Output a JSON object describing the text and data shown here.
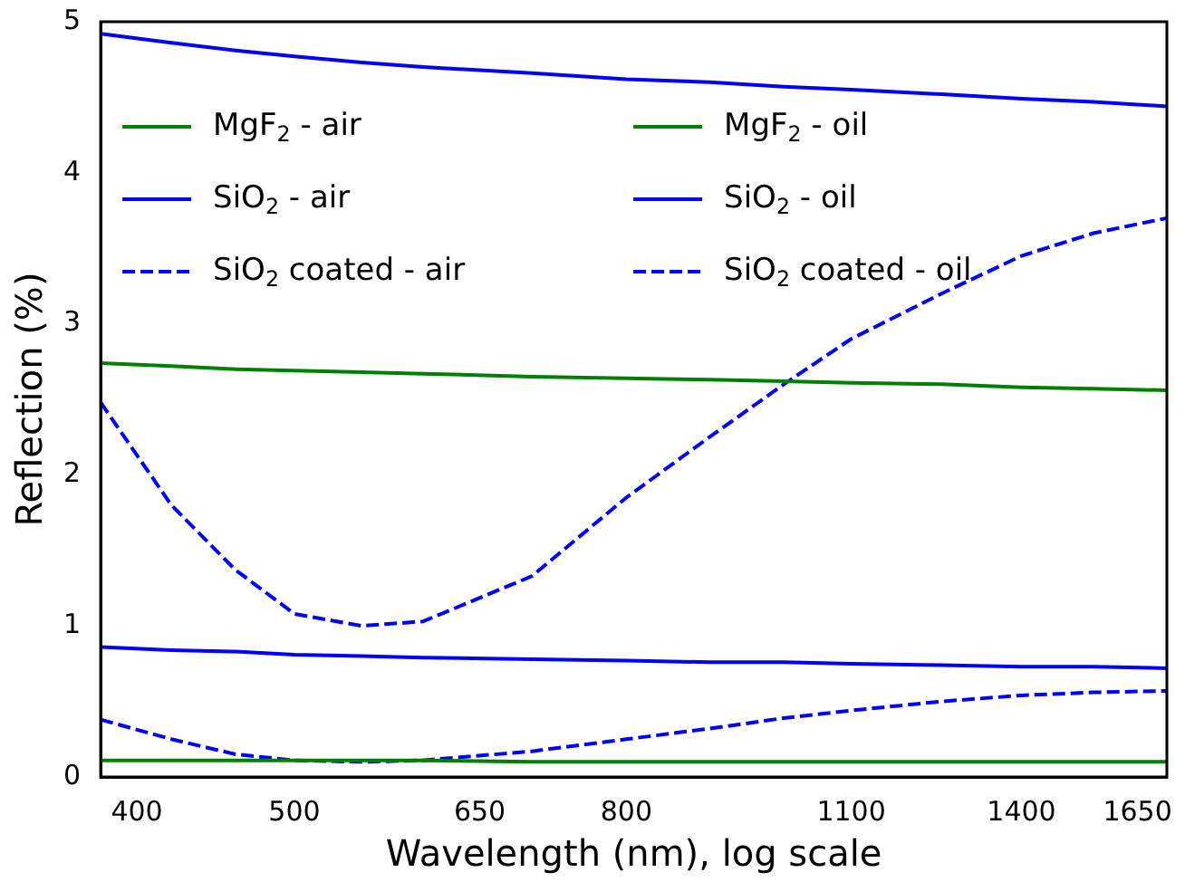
{
  "chart_data": {
    "type": "line",
    "xlabel": "Wavelength (nm), log scale",
    "ylabel": "Reflection (%)",
    "log": "x",
    "grid": false,
    "legend": "top",
    "xlim": [
      380,
      1720
    ],
    "xticks": [
      400,
      500,
      650,
      800,
      1100,
      1400,
      1650
    ],
    "ylim": [
      0,
      5
    ],
    "yticks": [
      0,
      1,
      2,
      3,
      4,
      5
    ],
    "x": [
      380,
      420,
      460,
      500,
      550,
      600,
      700,
      800,
      900,
      1000,
      1100,
      1250,
      1400,
      1550,
      1720
    ],
    "series": [
      {
        "name": "MgF$_{2}$ - air",
        "color": "#008000",
        "line_style": "solid",
        "values": [
          2.74,
          2.72,
          2.7,
          2.69,
          2.68,
          2.67,
          2.65,
          2.64,
          2.63,
          2.62,
          2.61,
          2.6,
          2.58,
          2.57,
          2.56
        ]
      },
      {
        "name": "SiO$_{2}$ - air",
        "color": "#0000ff",
        "line_style": "solid",
        "values": [
          4.92,
          4.86,
          4.81,
          4.77,
          4.73,
          4.7,
          4.66,
          4.62,
          4.6,
          4.57,
          4.55,
          4.52,
          4.49,
          4.47,
          4.44
        ]
      },
      {
        "name": "SiO$_{2}$ coated - air",
        "color": "#0000ff",
        "line_style": "dashed",
        "values": [
          2.48,
          1.8,
          1.37,
          1.08,
          1.0,
          1.03,
          1.33,
          1.85,
          2.25,
          2.6,
          2.9,
          3.2,
          3.45,
          3.6,
          3.7
        ]
      },
      {
        "name": "MgF$_{2}$ - oil",
        "color": "#008000",
        "line_style": "solid",
        "values": [
          0.11,
          0.11,
          0.11,
          0.11,
          0.11,
          0.11,
          0.1,
          0.1,
          0.1,
          0.1,
          0.1,
          0.1,
          0.1,
          0.1,
          0.1
        ]
      },
      {
        "name": "SiO$_{2}$ - oil",
        "color": "#0000ff",
        "line_style": "solid",
        "values": [
          0.86,
          0.84,
          0.83,
          0.81,
          0.8,
          0.79,
          0.78,
          0.77,
          0.76,
          0.76,
          0.75,
          0.74,
          0.73,
          0.73,
          0.72
        ]
      },
      {
        "name": "SiO$_{2}$ coated - oil",
        "color": "#0000ff",
        "line_style": "dashed",
        "values": [
          0.38,
          0.25,
          0.15,
          0.11,
          0.1,
          0.11,
          0.17,
          0.25,
          0.32,
          0.39,
          0.44,
          0.5,
          0.54,
          0.56,
          0.57
        ]
      }
    ]
  }
}
